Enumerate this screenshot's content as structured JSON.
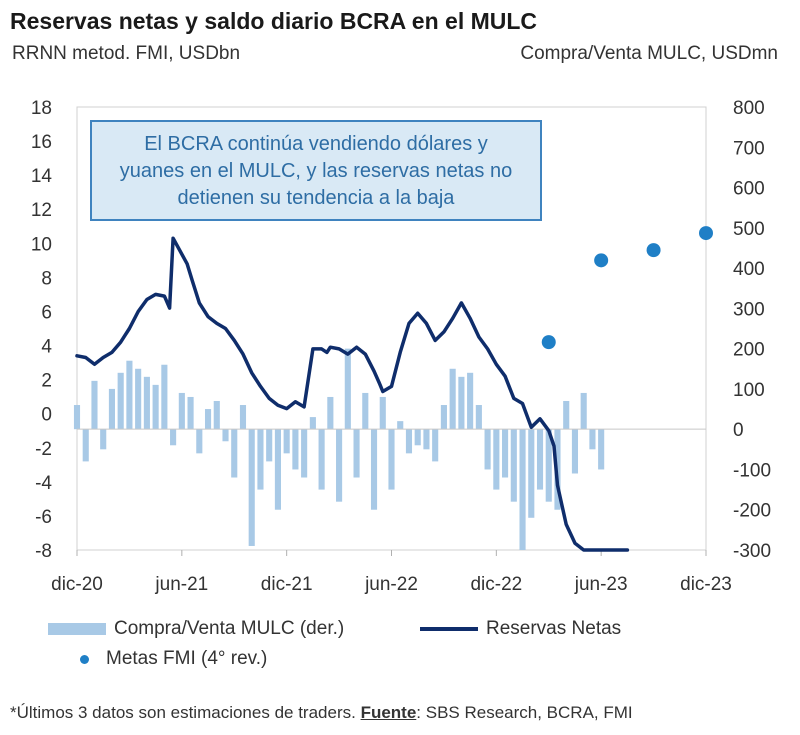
{
  "header": {
    "title": "Reservas netas y saldo diario BCRA en el MULC",
    "left_subtitle": "RRNN metod. FMI, USDbn",
    "right_subtitle": "Compra/Venta MULC, USDmn"
  },
  "callout": {
    "lines": [
      "El BCRA continúa vendiendo dólares y",
      "yuanes en el MULC, y las reservas netas no",
      "detienen su tendencia a la baja"
    ]
  },
  "legend": {
    "bars_label": "Compra/Venta MULC (der.)",
    "line_label": "Reservas Netas",
    "dots_label": "Metas FMI (4° rev.)"
  },
  "footnote": {
    "prefix": "*Últimos 3 datos son estimaciones de traders. ",
    "source_label": "Fuente",
    "source_text": ": SBS Research, BCRA, FMI"
  },
  "colors": {
    "line": "#0f2d6b",
    "bars": "#a8c9e6",
    "dots": "#1f7fc6",
    "callout_border": "#3f83bf",
    "callout_text": "#2e6da4"
  },
  "chart_data": {
    "type": "bar+line+scatter",
    "title": "Reservas netas y saldo diario BCRA en el MULC",
    "x_ticks": [
      "dic-20",
      "jun-21",
      "dic-21",
      "jun-22",
      "dic-22",
      "jun-23",
      "dic-23"
    ],
    "x_range_months": [
      0,
      36
    ],
    "y_left": {
      "label": "RRNN metod. FMI, USDbn",
      "range": [
        -8,
        18
      ],
      "ticks": [
        -8,
        -6,
        -4,
        -2,
        0,
        2,
        4,
        6,
        8,
        10,
        12,
        14,
        16,
        18
      ]
    },
    "y_right": {
      "label": "Compra/Venta MULC, USDmn",
      "range": [
        -300,
        800
      ],
      "ticks": [
        -300,
        -200,
        -100,
        0,
        100,
        200,
        300,
        400,
        500,
        600,
        700,
        800
      ]
    },
    "series": [
      {
        "name": "Reservas Netas",
        "axis": "left",
        "kind": "line",
        "x": [
          0,
          0.5,
          1,
          1.5,
          2,
          2.5,
          3,
          3.5,
          4,
          4.5,
          5,
          5.3,
          5.5,
          6.3,
          6.6,
          7,
          7.5,
          8,
          8.5,
          9,
          9.5,
          10,
          10.5,
          11,
          11.5,
          12,
          12.5,
          13,
          13.5,
          14,
          14.3,
          14.5,
          15,
          15.5,
          16,
          16.5,
          17,
          17.3,
          17.5,
          18,
          18.5,
          19,
          19.5,
          20,
          20.5,
          21,
          21.5,
          22,
          22.5,
          23,
          23.5,
          24,
          24.5,
          25,
          25.5,
          26,
          26.5,
          27,
          27.3,
          27.5,
          28,
          28.5,
          29,
          29.5,
          30,
          30.5,
          31,
          31.3,
          31.5
        ],
        "values": [
          3.4,
          3.3,
          2.9,
          3.3,
          3.6,
          4.2,
          5.0,
          6.0,
          6.7,
          7.0,
          6.9,
          6.2,
          10.3,
          8.8,
          7.8,
          6.5,
          5.7,
          5.3,
          5.0,
          4.3,
          3.5,
          2.4,
          1.6,
          0.9,
          0.5,
          0.3,
          0.7,
          0.4,
          3.8,
          3.8,
          3.6,
          3.9,
          3.8,
          3.5,
          3.9,
          3.5,
          2.5,
          1.8,
          1.3,
          1.6,
          3.6,
          5.3,
          5.9,
          5.3,
          4.3,
          4.8,
          5.6,
          6.5,
          5.6,
          4.5,
          3.8,
          2.9,
          2.2,
          0.9,
          0.6,
          -0.8,
          -0.3,
          -1.0,
          -1.9,
          -4.2,
          -6.5,
          -7.6,
          -8.0,
          -8.0,
          -8.0,
          -8.0,
          -8.0,
          -8.0,
          -8.0
        ]
      },
      {
        "name": "Metas FMI (4° rev.)",
        "axis": "left",
        "kind": "scatter",
        "x": [
          27,
          30,
          33,
          36
        ],
        "values": [
          4.2,
          9.0,
          9.6,
          10.6
        ]
      },
      {
        "name": "Compra/Venta MULC (der.)",
        "axis": "right",
        "kind": "bar",
        "note": "daily net purchases/sales by the BCRA, approximate values",
        "x": [
          0,
          0.5,
          1,
          1.5,
          2,
          2.5,
          3,
          3.5,
          4,
          4.5,
          5,
          5.5,
          6,
          6.5,
          7,
          7.5,
          8,
          8.5,
          9,
          9.5,
          10,
          10.5,
          11,
          11.5,
          12,
          12.5,
          13,
          13.5,
          14,
          14.5,
          15,
          15.5,
          16,
          16.5,
          17,
          17.5,
          18,
          18.5,
          19,
          19.5,
          20,
          20.5,
          21,
          21.5,
          22,
          22.5,
          23,
          23.5,
          24,
          24.5,
          25,
          25.5,
          26,
          26.5,
          27,
          27.5,
          28,
          28.5,
          29,
          29.5,
          30
        ],
        "values": [
          60,
          -80,
          120,
          -50,
          100,
          140,
          170,
          150,
          130,
          110,
          160,
          -40,
          90,
          80,
          -60,
          50,
          70,
          -30,
          -120,
          60,
          -290,
          -150,
          -80,
          -200,
          -60,
          -100,
          -120,
          30,
          -150,
          80,
          -180,
          200,
          -120,
          90,
          -200,
          80,
          -150,
          20,
          -60,
          -40,
          -50,
          -80,
          60,
          150,
          130,
          140,
          60,
          -100,
          -150,
          -120,
          -180,
          -300,
          -220,
          -150,
          -180,
          -200,
          70,
          -110,
          90,
          -50,
          -100
        ]
      }
    ]
  }
}
